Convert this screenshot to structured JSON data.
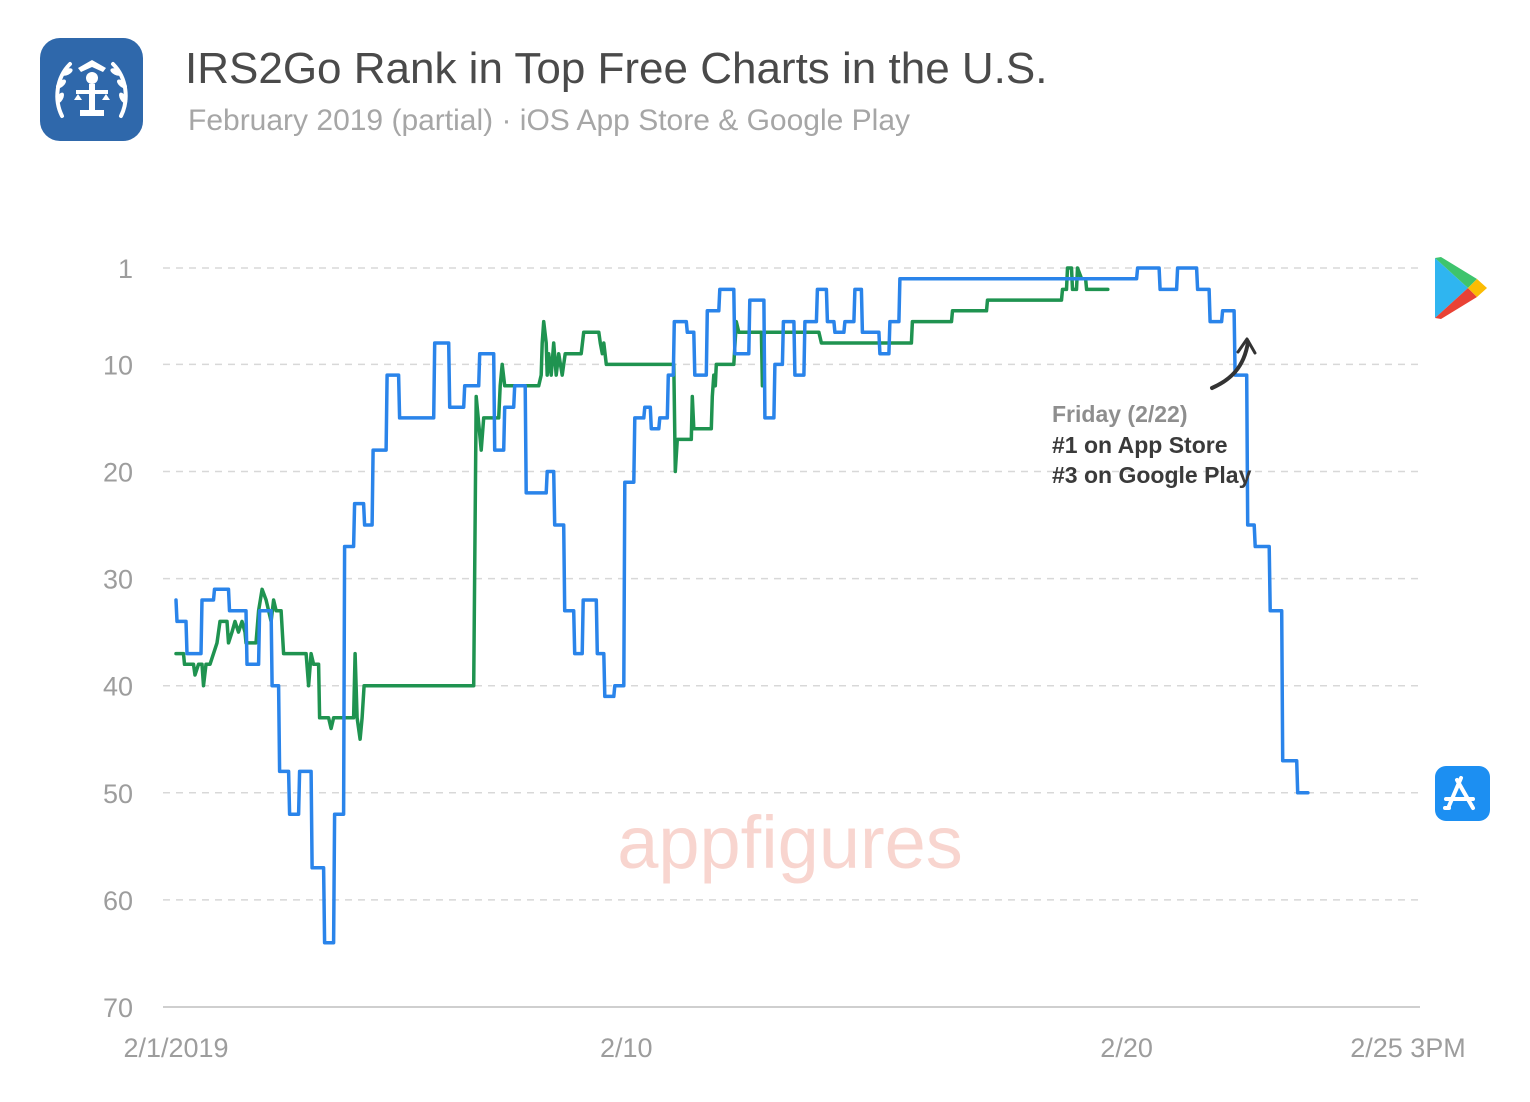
{
  "header": {
    "title": "IRS2Go Rank in Top Free Charts in the U.S.",
    "subtitle": "February 2019 (partial) · iOS App Store & Google Play",
    "icon": "irs-eagle-app-icon"
  },
  "watermark": "appfigures",
  "annotation": {
    "line1": "Friday (2/22)",
    "line2": "#1 on App Store",
    "line3": "#3 on Google Play"
  },
  "store_icons": [
    "google-play-icon",
    "app-store-icon"
  ],
  "colors": {
    "ios": "#2a84ea",
    "google_play": "#1f9350",
    "grid": "#d8d8d8",
    "axis": "#bfbfbf",
    "icon_bg": "#2f68ab",
    "app_store_bg": "#1c8ff2"
  },
  "chart_data": {
    "type": "line",
    "title": "IRS2Go Rank in Top Free Charts in the U.S.",
    "subtitle": "February 2019 (partial) · iOS App Store & Google Play",
    "y_axis": {
      "reversed": true,
      "range": [
        1,
        70
      ],
      "ticks": [
        1,
        10,
        20,
        30,
        40,
        50,
        60,
        70
      ]
    },
    "x_axis": {
      "range": [
        0,
        24.625
      ],
      "tick_values": [
        0,
        9,
        19,
        24.625
      ],
      "tick_labels": [
        "2/1/2019",
        "2/10",
        "2/20",
        "2/25 3PM"
      ]
    },
    "grid": true,
    "series": [
      {
        "id": "ios",
        "store": "iOS App Store",
        "points": [
          [
            0.0,
            32
          ],
          [
            0.02,
            34
          ],
          [
            0.2,
            34
          ],
          [
            0.22,
            37
          ],
          [
            0.5,
            37
          ],
          [
            0.52,
            32
          ],
          [
            0.75,
            32
          ],
          [
            0.77,
            31
          ],
          [
            1.05,
            31
          ],
          [
            1.07,
            33
          ],
          [
            1.4,
            33
          ],
          [
            1.42,
            38
          ],
          [
            1.65,
            38
          ],
          [
            1.67,
            33
          ],
          [
            1.9,
            33
          ],
          [
            1.92,
            40
          ],
          [
            2.05,
            40
          ],
          [
            2.07,
            48
          ],
          [
            2.25,
            48
          ],
          [
            2.27,
            52
          ],
          [
            2.45,
            52
          ],
          [
            2.47,
            48
          ],
          [
            2.7,
            48
          ],
          [
            2.72,
            57
          ],
          [
            2.95,
            57
          ],
          [
            2.97,
            64
          ],
          [
            3.15,
            64
          ],
          [
            3.17,
            52
          ],
          [
            3.35,
            52
          ],
          [
            3.37,
            27
          ],
          [
            3.55,
            27
          ],
          [
            3.57,
            23
          ],
          [
            3.75,
            23
          ],
          [
            3.77,
            25
          ],
          [
            3.92,
            25
          ],
          [
            3.94,
            18
          ],
          [
            4.2,
            18
          ],
          [
            4.22,
            11
          ],
          [
            4.45,
            11
          ],
          [
            4.47,
            15
          ],
          [
            5.15,
            15
          ],
          [
            5.17,
            8
          ],
          [
            5.45,
            8
          ],
          [
            5.47,
            14
          ],
          [
            5.75,
            14
          ],
          [
            5.77,
            12
          ],
          [
            6.05,
            12
          ],
          [
            6.07,
            9
          ],
          [
            6.35,
            9
          ],
          [
            6.37,
            18
          ],
          [
            6.55,
            18
          ],
          [
            6.57,
            14
          ],
          [
            6.75,
            14
          ],
          [
            6.77,
            12
          ],
          [
            6.98,
            12
          ],
          [
            7.0,
            22
          ],
          [
            7.4,
            22
          ],
          [
            7.42,
            20
          ],
          [
            7.55,
            20
          ],
          [
            7.57,
            25
          ],
          [
            7.75,
            25
          ],
          [
            7.77,
            33
          ],
          [
            7.95,
            33
          ],
          [
            7.97,
            37
          ],
          [
            8.12,
            37
          ],
          [
            8.14,
            32
          ],
          [
            8.4,
            32
          ],
          [
            8.42,
            37
          ],
          [
            8.55,
            37
          ],
          [
            8.57,
            41
          ],
          [
            8.75,
            41
          ],
          [
            8.77,
            40
          ],
          [
            8.95,
            40
          ],
          [
            8.97,
            21
          ],
          [
            9.15,
            21
          ],
          [
            9.17,
            15
          ],
          [
            9.35,
            15
          ],
          [
            9.37,
            14
          ],
          [
            9.48,
            14
          ],
          [
            9.5,
            16
          ],
          [
            9.65,
            16
          ],
          [
            9.67,
            15
          ],
          [
            9.82,
            15
          ],
          [
            9.84,
            11
          ],
          [
            9.94,
            11
          ],
          [
            9.96,
            6
          ],
          [
            10.2,
            6
          ],
          [
            10.22,
            7
          ],
          [
            10.35,
            7
          ],
          [
            10.37,
            11
          ],
          [
            10.6,
            11
          ],
          [
            10.62,
            5
          ],
          [
            10.85,
            5
          ],
          [
            10.87,
            3
          ],
          [
            11.15,
            3
          ],
          [
            11.17,
            9
          ],
          [
            11.45,
            9
          ],
          [
            11.47,
            4
          ],
          [
            11.75,
            4
          ],
          [
            11.77,
            15
          ],
          [
            11.95,
            15
          ],
          [
            11.97,
            10
          ],
          [
            12.12,
            10
          ],
          [
            12.14,
            6
          ],
          [
            12.35,
            6
          ],
          [
            12.37,
            11
          ],
          [
            12.55,
            11
          ],
          [
            12.57,
            6
          ],
          [
            12.8,
            6
          ],
          [
            12.82,
            3
          ],
          [
            13.0,
            3
          ],
          [
            13.02,
            6
          ],
          [
            13.15,
            6
          ],
          [
            13.17,
            7
          ],
          [
            13.35,
            7
          ],
          [
            13.37,
            6
          ],
          [
            13.55,
            6
          ],
          [
            13.57,
            3
          ],
          [
            13.7,
            3
          ],
          [
            13.72,
            7
          ],
          [
            14.05,
            7
          ],
          [
            14.07,
            9
          ],
          [
            14.25,
            9
          ],
          [
            14.27,
            6
          ],
          [
            14.45,
            6
          ],
          [
            14.47,
            2
          ],
          [
            19.2,
            2
          ],
          [
            19.22,
            1
          ],
          [
            19.65,
            1
          ],
          [
            19.67,
            3
          ],
          [
            20.0,
            3
          ],
          [
            20.02,
            1
          ],
          [
            20.4,
            1
          ],
          [
            20.42,
            3
          ],
          [
            20.65,
            3
          ],
          [
            20.67,
            6
          ],
          [
            20.9,
            6
          ],
          [
            20.92,
            5
          ],
          [
            21.15,
            5
          ],
          [
            21.17,
            11
          ],
          [
            21.4,
            11
          ],
          [
            21.42,
            25
          ],
          [
            21.55,
            25
          ],
          [
            21.57,
            27
          ],
          [
            21.85,
            27
          ],
          [
            21.87,
            33
          ],
          [
            22.1,
            33
          ],
          [
            22.12,
            47
          ],
          [
            22.4,
            47
          ],
          [
            22.42,
            50
          ],
          [
            22.625,
            50
          ]
        ]
      },
      {
        "id": "google_play",
        "store": "Google Play",
        "points": [
          [
            0.0,
            37
          ],
          [
            0.15,
            37
          ],
          [
            0.17,
            38
          ],
          [
            0.35,
            38
          ],
          [
            0.38,
            39
          ],
          [
            0.45,
            38
          ],
          [
            0.52,
            38
          ],
          [
            0.55,
            40
          ],
          [
            0.6,
            38
          ],
          [
            0.68,
            38
          ],
          [
            0.82,
            36
          ],
          [
            0.88,
            34
          ],
          [
            1.02,
            34
          ],
          [
            1.05,
            36
          ],
          [
            1.12,
            35
          ],
          [
            1.18,
            34
          ],
          [
            1.25,
            35
          ],
          [
            1.32,
            34
          ],
          [
            1.38,
            35
          ],
          [
            1.4,
            36
          ],
          [
            1.6,
            36
          ],
          [
            1.65,
            33
          ],
          [
            1.72,
            31
          ],
          [
            1.8,
            32
          ],
          [
            1.85,
            33
          ],
          [
            1.9,
            34
          ],
          [
            1.95,
            32
          ],
          [
            2.0,
            33
          ],
          [
            2.1,
            33
          ],
          [
            2.15,
            37
          ],
          [
            2.6,
            37
          ],
          [
            2.65,
            40
          ],
          [
            2.7,
            37
          ],
          [
            2.75,
            38
          ],
          [
            2.85,
            38
          ],
          [
            2.87,
            43
          ],
          [
            3.05,
            43
          ],
          [
            3.1,
            44
          ],
          [
            3.15,
            43
          ],
          [
            3.55,
            43
          ],
          [
            3.58,
            37
          ],
          [
            3.62,
            43
          ],
          [
            3.68,
            45
          ],
          [
            3.72,
            43
          ],
          [
            3.76,
            40
          ],
          [
            5.95,
            40
          ],
          [
            6.0,
            13
          ],
          [
            6.1,
            18
          ],
          [
            6.15,
            15
          ],
          [
            6.45,
            15
          ],
          [
            6.48,
            12
          ],
          [
            6.52,
            10
          ],
          [
            6.57,
            12
          ],
          [
            7.25,
            12
          ],
          [
            7.3,
            11
          ],
          [
            7.32,
            8
          ],
          [
            7.35,
            6
          ],
          [
            7.4,
            8
          ],
          [
            7.42,
            11
          ],
          [
            7.45,
            9
          ],
          [
            7.5,
            11
          ],
          [
            7.55,
            8
          ],
          [
            7.6,
            11
          ],
          [
            7.65,
            9
          ],
          [
            7.72,
            11
          ],
          [
            7.78,
            9
          ],
          [
            8.1,
            9
          ],
          [
            8.15,
            7
          ],
          [
            8.45,
            7
          ],
          [
            8.48,
            8
          ],
          [
            8.52,
            9
          ],
          [
            8.55,
            8
          ],
          [
            8.6,
            10
          ],
          [
            8.65,
            10
          ],
          [
            9.95,
            10
          ],
          [
            9.98,
            20
          ],
          [
            10.02,
            17
          ],
          [
            10.3,
            17
          ],
          [
            10.32,
            13
          ],
          [
            10.35,
            16
          ],
          [
            10.7,
            16
          ],
          [
            10.72,
            13
          ],
          [
            10.75,
            11
          ],
          [
            10.78,
            12
          ],
          [
            10.8,
            10
          ],
          [
            11.15,
            10
          ],
          [
            11.2,
            6
          ],
          [
            11.25,
            7
          ],
          [
            11.7,
            7
          ],
          [
            11.72,
            12
          ],
          [
            11.76,
            7
          ],
          [
            12.85,
            7
          ],
          [
            12.9,
            8
          ],
          [
            14.7,
            8
          ],
          [
            14.72,
            6
          ],
          [
            15.5,
            6
          ],
          [
            15.52,
            5
          ],
          [
            16.2,
            5
          ],
          [
            16.22,
            4
          ],
          [
            17.7,
            4
          ],
          [
            17.72,
            3
          ],
          [
            17.8,
            3
          ],
          [
            17.82,
            1
          ],
          [
            17.9,
            1
          ],
          [
            17.92,
            3
          ],
          [
            18.0,
            3
          ],
          [
            18.02,
            1
          ],
          [
            18.1,
            2
          ],
          [
            18.18,
            2
          ],
          [
            18.2,
            3
          ],
          [
            18.625,
            3
          ]
        ]
      }
    ]
  }
}
